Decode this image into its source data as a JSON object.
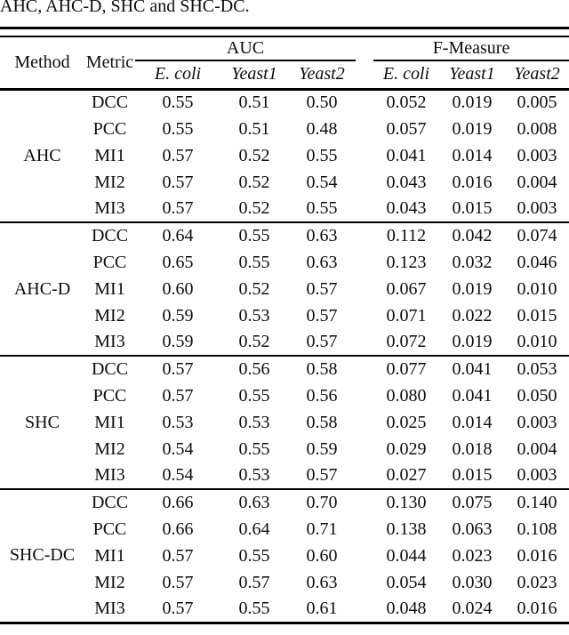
{
  "caption_line": "AHC, AHC-D, SHC and SHC-DC.",
  "table": {
    "col_method": "Method",
    "col_metric": "Metric",
    "group_headers": [
      {
        "label": "AUC",
        "sub": [
          "E. coli",
          "Yeast1",
          "Yeast2"
        ]
      },
      {
        "label": "F-Measure",
        "sub": [
          "E. coli",
          "Yeast1",
          "Yeast2"
        ]
      }
    ],
    "body": [
      {
        "method": "AHC",
        "rows": [
          {
            "metric": "DCC",
            "values": [
              "0.55",
              "0.51",
              "0.50",
              "0.052",
              "0.019",
              "0.005"
            ]
          },
          {
            "metric": "PCC",
            "values": [
              "0.55",
              "0.51",
              "0.48",
              "0.057",
              "0.019",
              "0.008"
            ]
          },
          {
            "metric": "MI1",
            "values": [
              "0.57",
              "0.52",
              "0.55",
              "0.041",
              "0.014",
              "0.003"
            ]
          },
          {
            "metric": "MI2",
            "values": [
              "0.57",
              "0.52",
              "0.54",
              "0.043",
              "0.016",
              "0.004"
            ]
          },
          {
            "metric": "MI3",
            "values": [
              "0.57",
              "0.52",
              "0.55",
              "0.043",
              "0.015",
              "0.003"
            ]
          }
        ]
      },
      {
        "method": "AHC-D",
        "rows": [
          {
            "metric": "DCC",
            "values": [
              "0.64",
              "0.55",
              "0.63",
              "0.112",
              "0.042",
              "0.074"
            ]
          },
          {
            "metric": "PCC",
            "values": [
              "0.65",
              "0.55",
              "0.63",
              "0.123",
              "0.032",
              "0.046"
            ]
          },
          {
            "metric": "MI1",
            "values": [
              "0.60",
              "0.52",
              "0.57",
              "0.067",
              "0.019",
              "0.010"
            ]
          },
          {
            "metric": "MI2",
            "values": [
              "0.59",
              "0.53",
              "0.57",
              "0.071",
              "0.022",
              "0.015"
            ]
          },
          {
            "metric": "MI3",
            "values": [
              "0.59",
              "0.52",
              "0.57",
              "0.072",
              "0.019",
              "0.010"
            ]
          }
        ]
      },
      {
        "method": "SHC",
        "rows": [
          {
            "metric": "DCC",
            "values": [
              "0.57",
              "0.56",
              "0.58",
              "0.077",
              "0.041",
              "0.053"
            ]
          },
          {
            "metric": "PCC",
            "values": [
              "0.57",
              "0.55",
              "0.56",
              "0.080",
              "0.041",
              "0.050"
            ]
          },
          {
            "metric": "MI1",
            "values": [
              "0.53",
              "0.53",
              "0.58",
              "0.025",
              "0.014",
              "0.003"
            ]
          },
          {
            "metric": "MI2",
            "values": [
              "0.54",
              "0.55",
              "0.59",
              "0.029",
              "0.018",
              "0.004"
            ]
          },
          {
            "metric": "MI3",
            "values": [
              "0.54",
              "0.53",
              "0.57",
              "0.027",
              "0.015",
              "0.003"
            ]
          }
        ]
      },
      {
        "method": "SHC-DC",
        "rows": [
          {
            "metric": "DCC",
            "values": [
              "0.66",
              "0.63",
              "0.70",
              "0.130",
              "0.075",
              "0.140"
            ]
          },
          {
            "metric": "PCC",
            "values": [
              "0.66",
              "0.64",
              "0.71",
              "0.138",
              "0.063",
              "0.108"
            ]
          },
          {
            "metric": "MI1",
            "values": [
              "0.57",
              "0.55",
              "0.60",
              "0.044",
              "0.023",
              "0.016"
            ]
          },
          {
            "metric": "MI2",
            "values": [
              "0.57",
              "0.57",
              "0.63",
              "0.054",
              "0.030",
              "0.023"
            ]
          },
          {
            "metric": "MI3",
            "values": [
              "0.57",
              "0.55",
              "0.61",
              "0.048",
              "0.024",
              "0.016"
            ]
          }
        ]
      }
    ]
  },
  "colors": {
    "text": "#0d0d0d",
    "rule": "#000000",
    "background": "#ffffff"
  }
}
